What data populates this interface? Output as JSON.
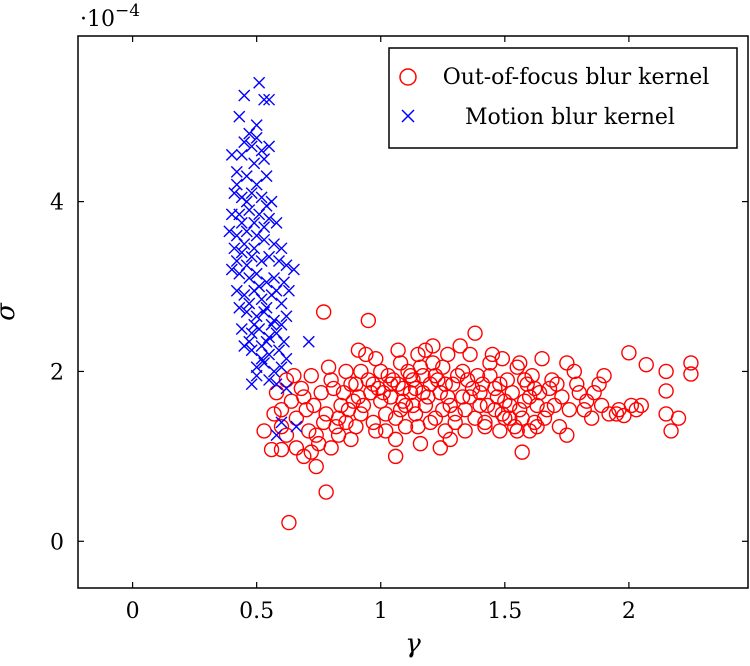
{
  "chart_data": {
    "type": "scatter",
    "xlabel": "γ",
    "ylabel": "σ",
    "scale_base": "·10",
    "scale_exp": "−4",
    "xlim": [
      -0.22,
      2.48
    ],
    "ylim": [
      -0.55,
      5.95
    ],
    "xticks": [
      0,
      0.5,
      1,
      1.5,
      2
    ],
    "xtick_labels": [
      "0",
      "0.5",
      "1",
      "1.5",
      "2"
    ],
    "yticks": [
      0,
      2,
      4
    ],
    "ytick_labels": [
      "0",
      "2",
      "4"
    ],
    "legend_position": "top-right",
    "series": [
      {
        "name": "Out-of-focus blur kernel",
        "marker": "circle",
        "color": "#ff0000",
        "points": [
          [
            0.63,
            0.22
          ],
          [
            0.78,
            0.58
          ],
          [
            0.56,
            1.08
          ],
          [
            0.6,
            1.08
          ],
          [
            0.74,
            0.88
          ],
          [
            0.72,
            1.05
          ],
          [
            0.53,
            1.3
          ],
          [
            0.95,
            2.6
          ],
          [
            0.77,
            2.7
          ],
          [
            1.38,
            2.45
          ],
          [
            1.06,
            1.0
          ],
          [
            1.57,
            1.05
          ],
          [
            1.75,
            1.25
          ],
          [
            1.24,
            1.1
          ],
          [
            2.25,
            2.1
          ],
          [
            2.25,
            1.97
          ],
          [
            2.2,
            1.45
          ],
          [
            2.17,
            1.3
          ],
          [
            2.15,
            1.5
          ],
          [
            2.15,
            1.77
          ],
          [
            2.15,
            2.0
          ],
          [
            2.07,
            2.08
          ],
          [
            2.0,
            2.22
          ],
          [
            2.05,
            1.6
          ],
          [
            2.03,
            1.55
          ],
          [
            1.98,
            1.48
          ],
          [
            1.95,
            1.5
          ],
          [
            1.9,
            1.95
          ],
          [
            1.88,
            1.85
          ],
          [
            1.85,
            1.45
          ],
          [
            1.82,
            1.55
          ],
          [
            1.8,
            1.75
          ],
          [
            1.78,
            2.0
          ],
          [
            1.75,
            2.1
          ],
          [
            1.72,
            1.35
          ],
          [
            1.7,
            1.6
          ],
          [
            1.68,
            1.8
          ],
          [
            1.65,
            2.15
          ],
          [
            1.62,
            1.4
          ],
          [
            1.6,
            1.7
          ],
          [
            1.58,
            1.9
          ],
          [
            1.55,
            2.05
          ],
          [
            1.52,
            1.45
          ],
          [
            1.5,
            1.65
          ],
          [
            1.48,
            1.85
          ],
          [
            1.45,
            2.2
          ],
          [
            1.42,
            1.4
          ],
          [
            1.4,
            1.75
          ],
          [
            1.35,
            1.9
          ],
          [
            1.32,
            2.3
          ],
          [
            1.3,
            1.5
          ],
          [
            1.27,
            1.7
          ],
          [
            1.25,
            2.05
          ],
          [
            1.22,
            1.45
          ],
          [
            1.2,
            1.85
          ],
          [
            1.18,
            2.25
          ],
          [
            1.15,
            1.35
          ],
          [
            1.13,
            1.9
          ],
          [
            1.1,
            1.6
          ],
          [
            1.08,
            2.1
          ],
          [
            1.06,
            1.2
          ],
          [
            1.04,
            1.85
          ],
          [
            1.02,
            1.5
          ],
          [
            1.0,
            2.0
          ],
          [
            0.98,
            1.3
          ],
          [
            0.96,
            1.75
          ],
          [
            0.94,
            2.2
          ],
          [
            0.92,
            1.5
          ],
          [
            0.9,
            1.85
          ],
          [
            0.88,
            1.2
          ],
          [
            0.86,
            2.0
          ],
          [
            0.84,
            1.6
          ],
          [
            0.82,
            1.35
          ],
          [
            0.8,
            1.9
          ],
          [
            0.78,
            1.5
          ],
          [
            0.76,
            1.75
          ],
          [
            0.74,
            1.25
          ],
          [
            0.72,
            1.95
          ],
          [
            0.7,
            1.55
          ],
          [
            0.68,
            1.8
          ],
          [
            0.66,
            1.45
          ],
          [
            0.64,
            1.65
          ],
          [
            0.62,
            1.9
          ],
          [
            0.6,
            1.55
          ],
          [
            0.58,
            1.75
          ],
          [
            0.57,
            1.5
          ],
          [
            0.6,
            1.35
          ],
          [
            0.62,
            1.25
          ],
          [
            0.66,
            1.1
          ],
          [
            0.69,
            1.0
          ],
          [
            0.71,
            1.3
          ],
          [
            0.75,
            1.15
          ],
          [
            0.8,
            1.1
          ],
          [
            0.83,
            1.45
          ],
          [
            0.87,
            1.55
          ],
          [
            0.91,
            1.7
          ],
          [
            0.95,
            1.9
          ],
          [
            0.99,
            1.8
          ],
          [
            1.03,
            1.95
          ],
          [
            1.07,
            1.85
          ],
          [
            1.11,
            2.0
          ],
          [
            1.14,
            1.8
          ],
          [
            1.17,
            1.95
          ],
          [
            1.19,
            1.7
          ],
          [
            1.21,
            2.1
          ],
          [
            1.23,
            1.9
          ],
          [
            1.26,
            1.85
          ],
          [
            1.28,
            1.6
          ],
          [
            1.31,
            1.95
          ],
          [
            1.34,
            1.55
          ],
          [
            1.37,
            1.8
          ],
          [
            1.39,
            1.95
          ],
          [
            1.43,
            1.6
          ],
          [
            1.46,
            1.8
          ],
          [
            1.49,
            1.5
          ],
          [
            1.53,
            1.75
          ],
          [
            1.56,
            1.55
          ],
          [
            1.59,
            1.85
          ],
          [
            1.63,
            1.6
          ],
          [
            1.66,
            1.45
          ],
          [
            1.69,
            1.9
          ],
          [
            1.73,
            1.7
          ],
          [
            1.76,
            1.55
          ],
          [
            1.79,
            1.85
          ],
          [
            1.83,
            1.65
          ],
          [
            1.86,
            1.75
          ],
          [
            1.89,
            1.6
          ],
          [
            1.92,
            1.5
          ],
          [
            1.96,
            1.55
          ],
          [
            2.01,
            1.6
          ],
          [
            0.88,
            1.85
          ],
          [
            0.92,
            2.0
          ],
          [
            0.97,
            1.85
          ],
          [
            1.01,
            1.75
          ],
          [
            1.05,
            1.9
          ],
          [
            1.09,
            1.8
          ],
          [
            1.12,
            1.95
          ],
          [
            1.16,
            2.05
          ],
          [
            0.85,
            1.75
          ],
          [
            0.89,
            1.65
          ],
          [
            0.93,
            1.6
          ],
          [
            1.0,
            1.65
          ],
          [
            1.04,
            1.7
          ],
          [
            1.08,
            1.55
          ],
          [
            1.12,
            1.75
          ],
          [
            1.18,
            1.6
          ],
          [
            1.24,
            1.75
          ],
          [
            1.29,
            1.85
          ],
          [
            1.33,
            2.0
          ],
          [
            1.36,
            1.7
          ],
          [
            1.41,
            1.85
          ],
          [
            1.44,
            1.95
          ],
          [
            1.47,
            1.7
          ],
          [
            1.51,
            1.9
          ],
          [
            1.54,
            1.35
          ],
          [
            1.57,
            1.45
          ],
          [
            1.61,
            1.95
          ],
          [
            1.64,
            1.75
          ],
          [
            1.67,
            1.55
          ],
          [
            1.71,
            1.85
          ],
          [
            0.79,
            2.05
          ],
          [
            0.81,
            1.8
          ],
          [
            0.73,
            1.6
          ],
          [
            0.69,
            1.7
          ],
          [
            0.65,
            1.95
          ],
          [
            0.97,
            1.4
          ],
          [
            1.02,
            1.3
          ],
          [
            1.06,
            1.45
          ],
          [
            1.1,
            1.35
          ],
          [
            1.14,
            1.5
          ],
          [
            1.2,
            1.4
          ],
          [
            1.26,
            1.3
          ],
          [
            1.3,
            1.4
          ],
          [
            1.34,
            1.3
          ],
          [
            1.38,
            1.45
          ],
          [
            1.42,
            1.35
          ],
          [
            1.48,
            1.3
          ],
          [
            1.5,
            1.45
          ],
          [
            1.55,
            1.3
          ],
          [
            1.6,
            1.3
          ],
          [
            1.63,
            1.35
          ],
          [
            0.9,
            1.35
          ],
          [
            0.86,
            1.4
          ],
          [
            0.83,
            1.25
          ],
          [
            0.77,
            1.4
          ],
          [
            1.16,
            1.15
          ],
          [
            1.28,
            1.2
          ],
          [
            1.07,
            2.25
          ],
          [
            1.15,
            2.2
          ],
          [
            1.21,
            2.3
          ],
          [
            1.27,
            2.2
          ],
          [
            1.36,
            2.2
          ],
          [
            1.44,
            2.1
          ],
          [
            1.49,
            2.15
          ],
          [
            1.56,
            2.1
          ],
          [
            0.98,
            2.15
          ],
          [
            0.91,
            2.25
          ],
          [
            1.09,
            1.65
          ],
          [
            1.13,
            1.6
          ],
          [
            1.17,
            1.75
          ],
          [
            1.22,
            1.95
          ],
          [
            1.25,
            1.55
          ],
          [
            1.33,
            1.7
          ],
          [
            1.4,
            1.6
          ],
          [
            1.46,
            1.55
          ],
          [
            1.52,
            1.6
          ],
          [
            1.58,
            1.65
          ],
          [
            1.62,
            1.8
          ]
        ]
      },
      {
        "name": "Motion blur kernel",
        "marker": "x",
        "color": "#0000ff",
        "points": [
          [
            0.51,
            5.4
          ],
          [
            0.53,
            5.2
          ],
          [
            0.55,
            5.2
          ],
          [
            0.45,
            5.25
          ],
          [
            0.43,
            5.0
          ],
          [
            0.5,
            4.9
          ],
          [
            0.47,
            4.8
          ],
          [
            0.4,
            4.55
          ],
          [
            0.44,
            4.55
          ],
          [
            0.52,
            4.6
          ],
          [
            0.55,
            4.65
          ],
          [
            0.49,
            4.45
          ],
          [
            0.42,
            4.35
          ],
          [
            0.46,
            4.3
          ],
          [
            0.54,
            4.3
          ],
          [
            0.41,
            4.1
          ],
          [
            0.44,
            4.05
          ],
          [
            0.48,
            4.1
          ],
          [
            0.52,
            4.05
          ],
          [
            0.56,
            4.0
          ],
          [
            0.4,
            3.85
          ],
          [
            0.43,
            3.85
          ],
          [
            0.47,
            3.9
          ],
          [
            0.51,
            3.85
          ],
          [
            0.55,
            3.8
          ],
          [
            0.58,
            3.75
          ],
          [
            0.39,
            3.65
          ],
          [
            0.42,
            3.6
          ],
          [
            0.46,
            3.65
          ],
          [
            0.5,
            3.6
          ],
          [
            0.53,
            3.55
          ],
          [
            0.57,
            3.5
          ],
          [
            0.6,
            3.45
          ],
          [
            0.41,
            3.45
          ],
          [
            0.44,
            3.4
          ],
          [
            0.48,
            3.35
          ],
          [
            0.52,
            3.3
          ],
          [
            0.55,
            3.35
          ],
          [
            0.59,
            3.3
          ],
          [
            0.62,
            3.25
          ],
          [
            0.4,
            3.2
          ],
          [
            0.43,
            3.15
          ],
          [
            0.47,
            3.1
          ],
          [
            0.5,
            3.15
          ],
          [
            0.54,
            3.05
          ],
          [
            0.57,
            3.1
          ],
          [
            0.61,
            3.05
          ],
          [
            0.65,
            3.2
          ],
          [
            0.42,
            2.95
          ],
          [
            0.45,
            2.9
          ],
          [
            0.49,
            2.95
          ],
          [
            0.52,
            2.85
          ],
          [
            0.56,
            2.9
          ],
          [
            0.6,
            2.8
          ],
          [
            0.63,
            2.95
          ],
          [
            0.43,
            2.75
          ],
          [
            0.46,
            2.7
          ],
          [
            0.5,
            2.65
          ],
          [
            0.53,
            2.7
          ],
          [
            0.57,
            2.6
          ],
          [
            0.6,
            2.55
          ],
          [
            0.62,
            2.65
          ],
          [
            0.44,
            2.5
          ],
          [
            0.48,
            2.45
          ],
          [
            0.51,
            2.5
          ],
          [
            0.55,
            2.4
          ],
          [
            0.58,
            2.45
          ],
          [
            0.61,
            2.35
          ],
          [
            0.45,
            2.3
          ],
          [
            0.48,
            2.25
          ],
          [
            0.52,
            2.3
          ],
          [
            0.55,
            2.2
          ],
          [
            0.59,
            2.25
          ],
          [
            0.62,
            2.15
          ],
          [
            0.5,
            2.05
          ],
          [
            0.53,
            2.1
          ],
          [
            0.57,
            2.0
          ],
          [
            0.6,
            2.05
          ],
          [
            0.5,
            1.95
          ],
          [
            0.55,
            1.9
          ],
          [
            0.58,
            1.85
          ],
          [
            0.62,
            1.8
          ],
          [
            0.48,
            1.85
          ],
          [
            0.6,
            1.4
          ],
          [
            0.58,
            1.25
          ],
          [
            0.66,
            1.35
          ],
          [
            0.71,
            2.35
          ],
          [
            0.45,
            4.7
          ],
          [
            0.48,
            4.65
          ],
          [
            0.5,
            4.75
          ],
          [
            0.53,
            4.5
          ],
          [
            0.42,
            4.2
          ],
          [
            0.5,
            4.2
          ],
          [
            0.46,
            4.0
          ],
          [
            0.54,
            3.95
          ],
          [
            0.44,
            3.75
          ],
          [
            0.49,
            3.75
          ],
          [
            0.53,
            3.7
          ],
          [
            0.45,
            3.5
          ],
          [
            0.49,
            3.45
          ],
          [
            0.42,
            3.3
          ],
          [
            0.46,
            3.25
          ],
          [
            0.51,
            3.0
          ],
          [
            0.58,
            2.95
          ],
          [
            0.47,
            2.8
          ],
          [
            0.54,
            2.75
          ],
          [
            0.49,
            2.55
          ],
          [
            0.56,
            2.55
          ],
          [
            0.47,
            2.35
          ],
          [
            0.54,
            2.35
          ],
          [
            0.52,
            2.15
          ]
        ]
      }
    ]
  }
}
